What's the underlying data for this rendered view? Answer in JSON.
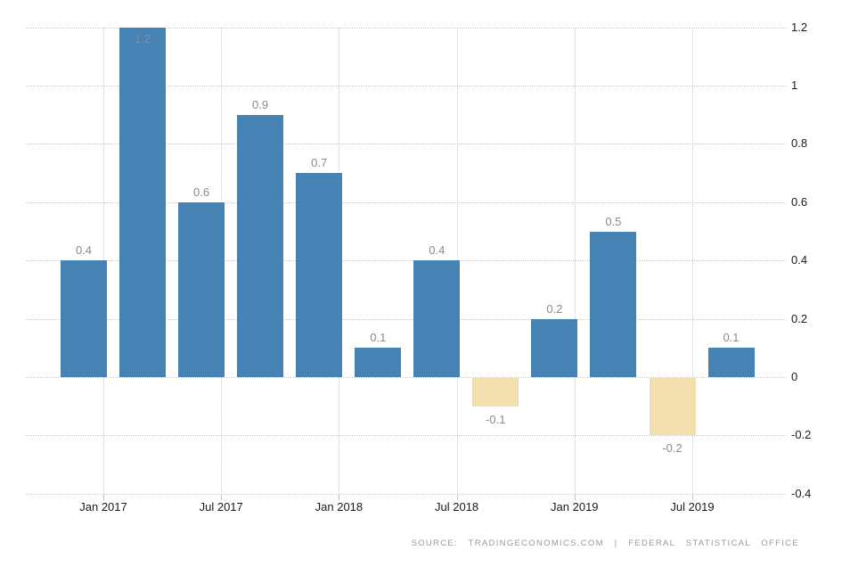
{
  "chart_data": {
    "type": "bar",
    "values": [
      0.4,
      1.2,
      0.6,
      0.9,
      0.7,
      0.1,
      0.4,
      -0.1,
      0.2,
      0.5,
      -0.2,
      0.1
    ],
    "bar_labels": [
      "0.4",
      "1.2",
      "0.6",
      "0.9",
      "0.7",
      "0.1",
      "0.4",
      "-0.1",
      "0.2",
      "0.5",
      "-0.2",
      "0.1"
    ],
    "x_tick_labels": [
      "Jan 2017",
      "Jul 2017",
      "Jan 2018",
      "Jul 2018",
      "Jan 2019",
      "Jul 2019"
    ],
    "y_ticks": [
      1.2,
      1,
      0.8,
      0.6,
      0.4,
      0.2,
      0,
      -0.2,
      -0.4
    ],
    "y_tick_labels": [
      "1.2",
      "1",
      "0.8",
      "0.6",
      "0.4",
      "0.2",
      "0",
      "-0.2",
      "-0.4"
    ],
    "ylim": [
      -0.4,
      1.2
    ],
    "grid": "dotted",
    "legend": "none",
    "title": "",
    "xlabel": "",
    "ylabel": "",
    "positive_color": "#4782b4",
    "negative_color": "#f3deb0",
    "bar_label_color": "#8a8a8a",
    "axis_text_color": "#1a1a1a",
    "grid_color": "#cccccc"
  },
  "footer": {
    "source_text": "SOURCE:  TRADINGECONOMICS.COM  |  FEDERAL  STATISTICAL  OFFICE"
  }
}
